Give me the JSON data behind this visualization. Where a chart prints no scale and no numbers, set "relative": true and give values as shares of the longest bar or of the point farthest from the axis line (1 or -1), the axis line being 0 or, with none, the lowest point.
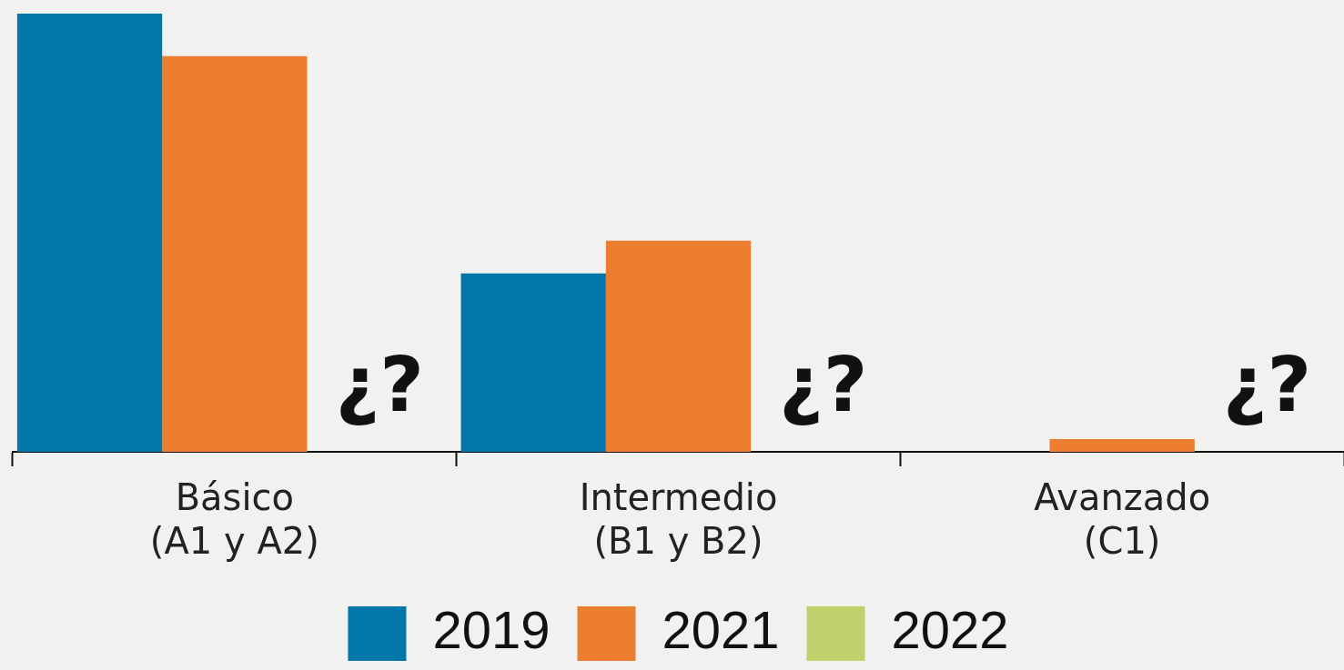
{
  "chart_data": {
    "type": "bar",
    "relative": true,
    "categories": [
      "Básico\n(A1 y A2)",
      "Intermedio\n(B1 y B2)",
      "Avanzado\n(C1)"
    ],
    "series": [
      {
        "name": "2019",
        "color": "#0077a8",
        "values": [
          1,
          0.407,
          null
        ]
      },
      {
        "name": "2021",
        "color": "#ed7d31",
        "values": [
          0.903,
          0.482,
          0.029
        ]
      },
      {
        "name": "2022",
        "color": "#bed16a",
        "values": [
          null,
          null,
          null
        ]
      }
    ],
    "annotations": [
      "¿?",
      "¿?",
      "¿?"
    ],
    "legend": "bottom",
    "grid": false
  }
}
